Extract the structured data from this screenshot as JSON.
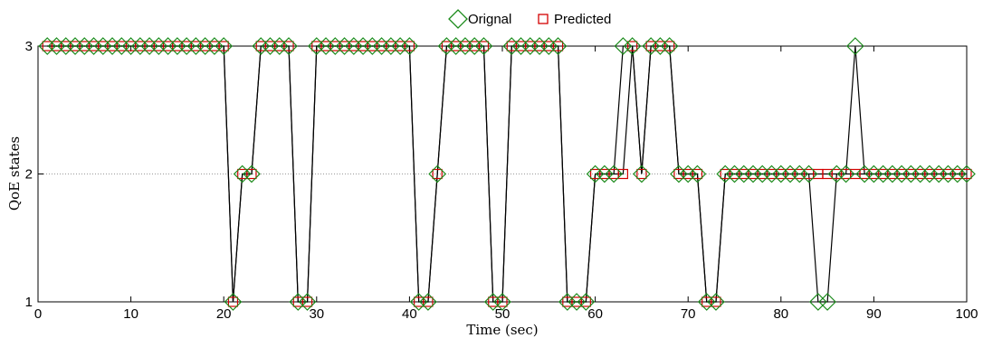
{
  "chart_data": {
    "type": "line",
    "xlabel": "Time (sec)",
    "ylabel": "QoE states",
    "xlim": [
      0,
      100
    ],
    "ylim": [
      1,
      3
    ],
    "xticks": [
      0,
      10,
      20,
      30,
      40,
      50,
      60,
      70,
      80,
      90,
      100
    ],
    "yticks": [
      1,
      2,
      3
    ],
    "grid": "dotted horizontal at y=2",
    "legend": {
      "placement": "top-center"
    },
    "colors": {
      "original": "#1a8a1a",
      "predicted": "#d40000",
      "line": "#000000"
    },
    "x": [
      1,
      2,
      3,
      4,
      5,
      6,
      7,
      8,
      9,
      10,
      11,
      12,
      13,
      14,
      15,
      16,
      17,
      18,
      19,
      20,
      21,
      22,
      23,
      24,
      25,
      26,
      27,
      28,
      29,
      30,
      31,
      32,
      33,
      34,
      35,
      36,
      37,
      38,
      39,
      40,
      41,
      42,
      43,
      44,
      45,
      46,
      47,
      48,
      49,
      50,
      51,
      52,
      53,
      54,
      55,
      56,
      57,
      58,
      59,
      60,
      61,
      62,
      63,
      64,
      65,
      66,
      67,
      68,
      69,
      70,
      71,
      72,
      73,
      74,
      75,
      76,
      77,
      78,
      79,
      80,
      81,
      82,
      83,
      84,
      85,
      86,
      87,
      88,
      89,
      90,
      91,
      92,
      93,
      94,
      95,
      96,
      97,
      98,
      99,
      100
    ],
    "series": [
      {
        "name": "Orignal",
        "marker": "diamond",
        "values": [
          3,
          3,
          3,
          3,
          3,
          3,
          3,
          3,
          3,
          3,
          3,
          3,
          3,
          3,
          3,
          3,
          3,
          3,
          3,
          3,
          1,
          2,
          2,
          3,
          3,
          3,
          3,
          1,
          1,
          3,
          3,
          3,
          3,
          3,
          3,
          3,
          3,
          3,
          3,
          3,
          1,
          1,
          2,
          3,
          3,
          3,
          3,
          3,
          1,
          1,
          3,
          3,
          3,
          3,
          3,
          3,
          1,
          1,
          1,
          2,
          2,
          2,
          3,
          3,
          2,
          3,
          3,
          3,
          2,
          2,
          2,
          1,
          1,
          2,
          2,
          2,
          2,
          2,
          2,
          2,
          2,
          2,
          2,
          1,
          1,
          2,
          2,
          3,
          2,
          2,
          2,
          2,
          2,
          2,
          2,
          2,
          2,
          2,
          2,
          2
        ]
      },
      {
        "name": "Predicted",
        "marker": "square",
        "values": [
          3,
          3,
          3,
          3,
          3,
          3,
          3,
          3,
          3,
          3,
          3,
          3,
          3,
          3,
          3,
          3,
          3,
          3,
          3,
          3,
          1,
          2,
          2,
          3,
          3,
          3,
          3,
          1,
          1,
          3,
          3,
          3,
          3,
          3,
          3,
          3,
          3,
          3,
          3,
          3,
          1,
          1,
          2,
          3,
          3,
          3,
          3,
          3,
          1,
          1,
          3,
          3,
          3,
          3,
          3,
          3,
          1,
          1,
          1,
          2,
          2,
          2,
          2,
          3,
          2,
          3,
          3,
          3,
          2,
          2,
          2,
          1,
          1,
          2,
          2,
          2,
          2,
          2,
          2,
          2,
          2,
          2,
          2,
          2,
          2,
          2,
          2,
          2,
          2,
          2,
          2,
          2,
          2,
          2,
          2,
          2,
          2,
          2,
          2,
          2
        ]
      }
    ]
  }
}
